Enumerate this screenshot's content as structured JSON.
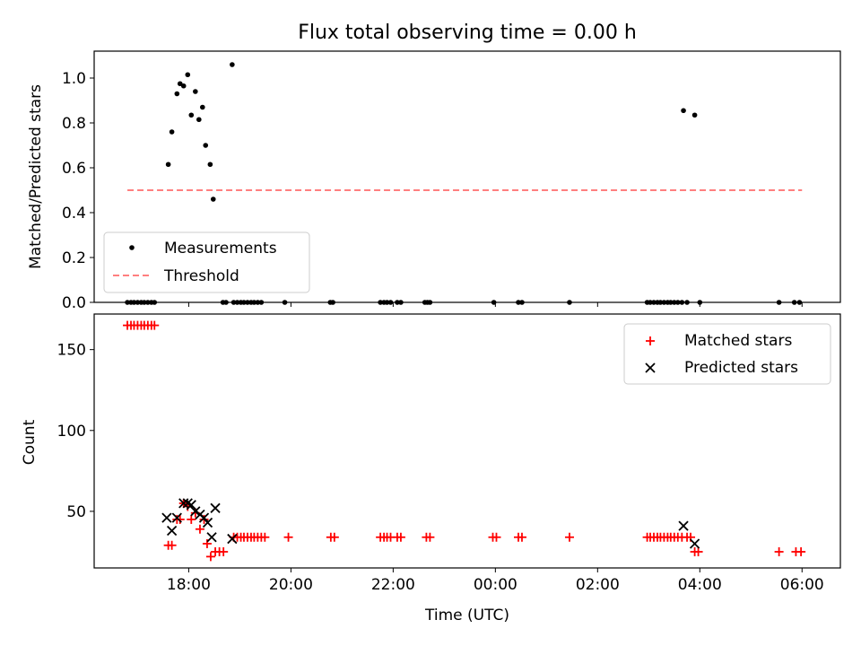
{
  "figure_title": "Flux total observing time = 0.00 h",
  "xlabel": "Time (UTC)",
  "x_tick_labels": [
    "18:00",
    "20:00",
    "22:00",
    "00:00",
    "02:00",
    "04:00",
    "06:00"
  ],
  "colors": {
    "measurement": "#000000",
    "threshold": "#ff7f7f",
    "matched": "#ff0000",
    "predicted": "#000000"
  },
  "chart_data": [
    {
      "type": "scatter",
      "title": "Flux total observing time = 0.00 h",
      "xlabel": "",
      "ylabel": "Matched/Predicted stars",
      "xlim": [
        -1.85,
        12.75
      ],
      "ylim": [
        0,
        1.12
      ],
      "x_unit": "hours relative to 00:00 UTC",
      "y_ticks": [
        0.0,
        0.2,
        0.4,
        0.6,
        0.8,
        1.0
      ],
      "y_tick_labels": [
        "0.0",
        "0.2",
        "0.4",
        "0.6",
        "0.8",
        "1.0"
      ],
      "legend": {
        "position": "lower-left",
        "entries": [
          "Measurements",
          "Threshold"
        ]
      },
      "threshold": {
        "name": "Threshold",
        "value": 0.5,
        "x_range": [
          -1.2,
          12.0
        ]
      },
      "series": [
        {
          "name": "Measurements",
          "points": [
            [
              -1.2,
              0
            ],
            [
              -1.13,
              0
            ],
            [
              -1.07,
              0
            ],
            [
              -1.0,
              0
            ],
            [
              -0.93,
              0
            ],
            [
              -0.87,
              0
            ],
            [
              -0.8,
              0
            ],
            [
              -0.73,
              0
            ],
            [
              -0.67,
              0
            ],
            [
              -0.4,
              0.615
            ],
            [
              -0.33,
              0.76
            ],
            [
              -0.23,
              0.93
            ],
            [
              -0.17,
              0.975
            ],
            [
              -0.1,
              0.965
            ],
            [
              -0.02,
              1.015
            ],
            [
              0.05,
              0.835
            ],
            [
              0.13,
              0.94
            ],
            [
              0.2,
              0.815
            ],
            [
              0.27,
              0.87
            ],
            [
              0.33,
              0.7
            ],
            [
              0.42,
              0.615
            ],
            [
              0.48,
              0.46
            ],
            [
              0.67,
              0
            ],
            [
              0.73,
              0
            ],
            [
              0.88,
              0
            ],
            [
              0.95,
              0
            ],
            [
              1.02,
              0
            ],
            [
              1.08,
              0
            ],
            [
              1.15,
              0
            ],
            [
              1.22,
              0
            ],
            [
              1.28,
              0
            ],
            [
              1.35,
              0
            ],
            [
              1.42,
              0
            ],
            [
              0.85,
              1.06
            ],
            [
              1.88,
              0
            ],
            [
              2.77,
              0
            ],
            [
              2.82,
              0
            ],
            [
              3.75,
              0
            ],
            [
              3.82,
              0
            ],
            [
              3.88,
              0
            ],
            [
              3.95,
              0
            ],
            [
              4.08,
              0
            ],
            [
              4.15,
              0
            ],
            [
              4.62,
              0
            ],
            [
              4.67,
              0
            ],
            [
              4.72,
              0
            ],
            [
              5.97,
              0
            ],
            [
              6.45,
              0
            ],
            [
              6.52,
              0
            ],
            [
              7.45,
              0
            ],
            [
              8.97,
              0
            ],
            [
              9.03,
              0
            ],
            [
              9.1,
              0
            ],
            [
              9.17,
              0
            ],
            [
              9.23,
              0
            ],
            [
              9.3,
              0
            ],
            [
              9.37,
              0
            ],
            [
              9.43,
              0
            ],
            [
              9.5,
              0
            ],
            [
              9.57,
              0
            ],
            [
              9.65,
              0
            ],
            [
              9.75,
              0
            ],
            [
              9.68,
              0.855
            ],
            [
              9.9,
              0.835
            ],
            [
              10.0,
              0
            ],
            [
              11.55,
              0
            ],
            [
              11.85,
              0
            ],
            [
              11.95,
              0
            ]
          ]
        }
      ]
    },
    {
      "type": "scatter",
      "title": "",
      "xlabel": "Time (UTC)",
      "ylabel": "Count",
      "xlim": [
        -1.85,
        12.75
      ],
      "ylim": [
        15,
        172
      ],
      "x_unit": "hours relative to 00:00 UTC",
      "y_ticks": [
        50,
        100,
        150
      ],
      "y_tick_labels": [
        "50",
        "100",
        "150"
      ],
      "legend": {
        "position": "upper-right",
        "entries": [
          "Matched stars",
          "Predicted stars"
        ]
      },
      "series": [
        {
          "name": "Matched stars",
          "marker": "plus",
          "points": [
            [
              -1.2,
              165
            ],
            [
              -1.13,
              165
            ],
            [
              -1.07,
              165
            ],
            [
              -1.0,
              165
            ],
            [
              -0.93,
              165
            ],
            [
              -0.87,
              165
            ],
            [
              -0.8,
              165
            ],
            [
              -0.73,
              165
            ],
            [
              -0.67,
              165
            ],
            [
              -0.4,
              29
            ],
            [
              -0.33,
              29
            ],
            [
              -0.23,
              45
            ],
            [
              -0.17,
              45
            ],
            [
              -0.1,
              55
            ],
            [
              -0.02,
              53
            ],
            [
              0.05,
              45
            ],
            [
              0.13,
              49
            ],
            [
              0.22,
              39
            ],
            [
              0.3,
              45
            ],
            [
              0.36,
              30
            ],
            [
              0.43,
              22
            ],
            [
              0.52,
              25
            ],
            [
              0.6,
              25
            ],
            [
              0.68,
              25
            ],
            [
              0.88,
              34
            ],
            [
              0.95,
              34
            ],
            [
              1.02,
              34
            ],
            [
              1.08,
              34
            ],
            [
              1.15,
              34
            ],
            [
              1.22,
              34
            ],
            [
              1.28,
              34
            ],
            [
              1.35,
              34
            ],
            [
              1.42,
              34
            ],
            [
              1.49,
              34
            ],
            [
              1.95,
              34
            ],
            [
              2.78,
              34
            ],
            [
              2.85,
              34
            ],
            [
              3.75,
              34
            ],
            [
              3.82,
              34
            ],
            [
              3.88,
              34
            ],
            [
              3.95,
              34
            ],
            [
              4.08,
              34
            ],
            [
              4.15,
              34
            ],
            [
              4.65,
              34
            ],
            [
              4.72,
              34
            ],
            [
              5.95,
              34
            ],
            [
              6.02,
              34
            ],
            [
              6.45,
              34
            ],
            [
              6.52,
              34
            ],
            [
              7.45,
              34
            ],
            [
              8.97,
              34
            ],
            [
              9.03,
              34
            ],
            [
              9.1,
              34
            ],
            [
              9.17,
              34
            ],
            [
              9.23,
              34
            ],
            [
              9.3,
              34
            ],
            [
              9.37,
              34
            ],
            [
              9.43,
              34
            ],
            [
              9.5,
              34
            ],
            [
              9.57,
              34
            ],
            [
              9.65,
              34
            ],
            [
              9.75,
              34
            ],
            [
              9.82,
              34
            ],
            [
              9.9,
              25
            ],
            [
              9.97,
              25
            ],
            [
              11.55,
              25
            ],
            [
              11.88,
              25
            ],
            [
              11.98,
              25
            ]
          ]
        },
        {
          "name": "Predicted stars",
          "marker": "x",
          "points": [
            [
              -0.43,
              46
            ],
            [
              -0.33,
              38
            ],
            [
              -0.23,
              46
            ],
            [
              -0.1,
              55
            ],
            [
              -0.02,
              55
            ],
            [
              0.05,
              54
            ],
            [
              0.13,
              50
            ],
            [
              0.22,
              48
            ],
            [
              0.3,
              46
            ],
            [
              0.37,
              43
            ],
            [
              0.45,
              34
            ],
            [
              0.52,
              52
            ],
            [
              0.85,
              33
            ],
            [
              9.68,
              41
            ],
            [
              9.9,
              30
            ]
          ]
        }
      ]
    }
  ]
}
